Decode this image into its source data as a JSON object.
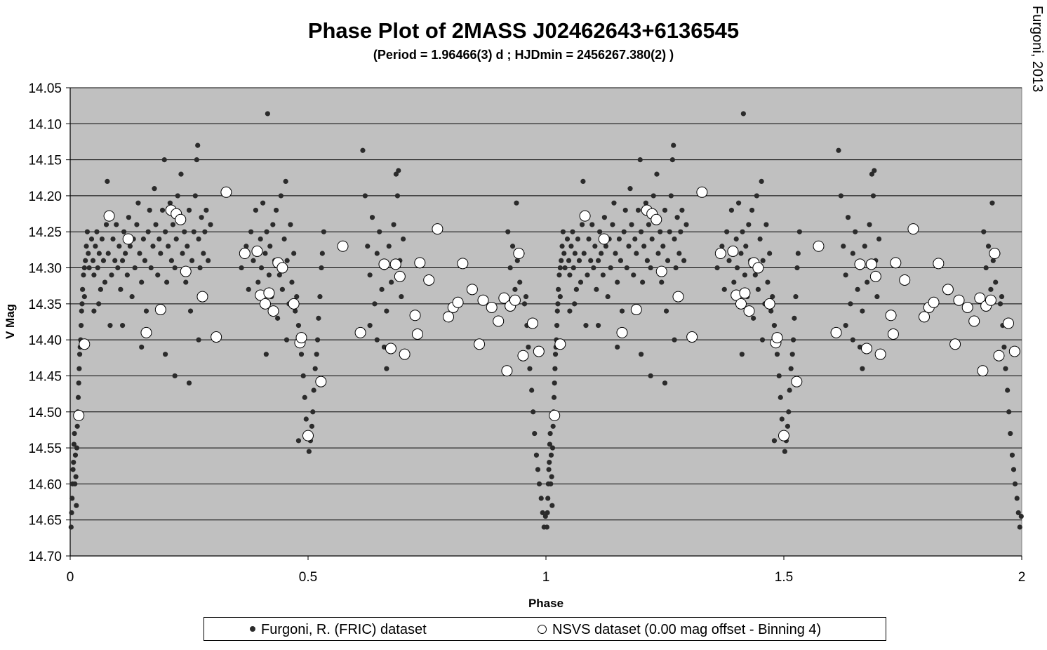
{
  "credit": "Furgoni, 2013",
  "colors": {
    "plot_background": "#c0c0c0",
    "fric_marker": "#2b2b2b",
    "nsvs_marker": "#ffffff"
  },
  "chart_data": {
    "type": "scatter",
    "title": "Phase Plot of 2MASS J02462643+6136545",
    "subtitle": "(Period = 1.96466(3) d ; HJDmin = 2456267.380(2) )",
    "xlabel": "Phase",
    "ylabel": "V Mag",
    "xlim": [
      0,
      2
    ],
    "ylim": [
      14.05,
      14.7
    ],
    "y_inverted": true,
    "x_ticks": [
      "0",
      "0.5",
      "1",
      "1.5",
      "2"
    ],
    "y_ticks": [
      "14.05",
      "14.10",
      "14.15",
      "14.20",
      "14.25",
      "14.30",
      "14.35",
      "14.40",
      "14.45",
      "14.50",
      "14.55",
      "14.60",
      "14.65",
      "14.70"
    ],
    "grid": "horizontal",
    "legend_position": "bottom",
    "phase_plot_repeat": true,
    "series": [
      {
        "name": "Furgoni, R. (FRIC) dataset",
        "marker": "filled-circle",
        "color": "#2b2b2b",
        "points": [
          [
            0.002,
            14.66
          ],
          [
            0.003,
            14.64
          ],
          [
            0.004,
            14.62
          ],
          [
            0.005,
            14.6
          ],
          [
            0.006,
            14.58
          ],
          [
            0.007,
            14.57
          ],
          [
            0.008,
            14.545
          ],
          [
            0.009,
            14.53
          ],
          [
            0.01,
            14.6
          ],
          [
            0.011,
            14.56
          ],
          [
            0.012,
            14.59
          ],
          [
            0.013,
            14.63
          ],
          [
            0.014,
            14.55
          ],
          [
            0.015,
            14.52
          ],
          [
            0.016,
            14.5
          ],
          [
            0.017,
            14.48
          ],
          [
            0.018,
            14.46
          ],
          [
            0.019,
            14.44
          ],
          [
            0.02,
            14.42
          ],
          [
            0.021,
            14.41
          ],
          [
            0.022,
            14.4
          ],
          [
            0.023,
            14.38
          ],
          [
            0.024,
            14.36
          ],
          [
            0.025,
            14.35
          ],
          [
            0.026,
            14.33
          ],
          [
            0.028,
            14.31
          ],
          [
            0.03,
            14.3
          ],
          [
            0.032,
            14.29
          ],
          [
            0.034,
            14.27
          ],
          [
            0.036,
            14.25
          ],
          [
            0.038,
            14.28
          ],
          [
            0.04,
            14.3
          ],
          [
            0.045,
            14.26
          ],
          [
            0.048,
            14.29
          ],
          [
            0.05,
            14.31
          ],
          [
            0.053,
            14.27
          ],
          [
            0.056,
            14.25
          ],
          [
            0.058,
            14.3
          ],
          [
            0.061,
            14.28
          ],
          [
            0.064,
            14.33
          ],
          [
            0.067,
            14.26
          ],
          [
            0.07,
            14.29
          ],
          [
            0.073,
            14.32
          ],
          [
            0.076,
            14.24
          ],
          [
            0.078,
            14.18
          ],
          [
            0.08,
            14.28
          ],
          [
            0.084,
            14.38
          ],
          [
            0.087,
            14.31
          ],
          [
            0.09,
            14.26
          ],
          [
            0.094,
            14.29
          ],
          [
            0.097,
            14.24
          ],
          [
            0.1,
            14.3
          ],
          [
            0.103,
            14.27
          ],
          [
            0.106,
            14.33
          ],
          [
            0.11,
            14.29
          ],
          [
            0.113,
            14.25
          ],
          [
            0.116,
            14.28
          ],
          [
            0.12,
            14.31
          ],
          [
            0.123,
            14.23
          ],
          [
            0.126,
            14.27
          ],
          [
            0.13,
            14.34
          ],
          [
            0.133,
            14.26
          ],
          [
            0.136,
            14.3
          ],
          [
            0.14,
            14.24
          ],
          [
            0.143,
            14.21
          ],
          [
            0.146,
            14.28
          ],
          [
            0.15,
            14.32
          ],
          [
            0.154,
            14.26
          ],
          [
            0.157,
            14.29
          ],
          [
            0.16,
            14.36
          ],
          [
            0.164,
            14.25
          ],
          [
            0.167,
            14.22
          ],
          [
            0.17,
            14.3
          ],
          [
            0.174,
            14.27
          ],
          [
            0.177,
            14.19
          ],
          [
            0.18,
            14.24
          ],
          [
            0.184,
            14.31
          ],
          [
            0.187,
            14.26
          ],
          [
            0.19,
            14.28
          ],
          [
            0.194,
            14.22
          ],
          [
            0.198,
            14.15
          ],
          [
            0.2,
            14.25
          ],
          [
            0.203,
            14.32
          ],
          [
            0.206,
            14.27
          ],
          [
            0.21,
            14.21
          ],
          [
            0.213,
            14.29
          ],
          [
            0.216,
            14.24
          ],
          [
            0.22,
            14.3
          ],
          [
            0.223,
            14.26
          ],
          [
            0.226,
            14.2
          ],
          [
            0.23,
            14.23
          ],
          [
            0.233,
            14.17
          ],
          [
            0.236,
            14.28
          ],
          [
            0.24,
            14.25
          ],
          [
            0.243,
            14.32
          ],
          [
            0.246,
            14.27
          ],
          [
            0.25,
            14.22
          ],
          [
            0.253,
            14.36
          ],
          [
            0.256,
            14.29
          ],
          [
            0.26,
            14.25
          ],
          [
            0.263,
            14.2
          ],
          [
            0.266,
            14.15
          ],
          [
            0.268,
            14.13
          ],
          [
            0.27,
            14.26
          ],
          [
            0.273,
            14.3
          ],
          [
            0.276,
            14.23
          ],
          [
            0.28,
            14.28
          ],
          [
            0.283,
            14.25
          ],
          [
            0.286,
            14.22
          ],
          [
            0.29,
            14.29
          ],
          [
            0.295,
            14.24
          ],
          [
            0.03,
            14.34
          ],
          [
            0.05,
            14.36
          ],
          [
            0.11,
            14.38
          ],
          [
            0.15,
            14.41
          ],
          [
            0.2,
            14.42
          ],
          [
            0.22,
            14.45
          ],
          [
            0.25,
            14.46
          ],
          [
            0.27,
            14.4
          ],
          [
            0.06,
            14.35
          ],
          [
            0.36,
            14.3
          ],
          [
            0.37,
            14.27
          ],
          [
            0.375,
            14.33
          ],
          [
            0.38,
            14.25
          ],
          [
            0.385,
            14.29
          ],
          [
            0.39,
            14.22
          ],
          [
            0.395,
            14.32
          ],
          [
            0.4,
            14.26
          ],
          [
            0.402,
            14.3
          ],
          [
            0.405,
            14.21
          ],
          [
            0.408,
            14.35
          ],
          [
            0.41,
            14.28
          ],
          [
            0.413,
            14.25
          ],
          [
            0.415,
            14.086
          ],
          [
            0.418,
            14.31
          ],
          [
            0.42,
            14.27
          ],
          [
            0.423,
            14.34
          ],
          [
            0.426,
            14.24
          ],
          [
            0.43,
            14.29
          ],
          [
            0.433,
            14.22
          ],
          [
            0.436,
            14.37
          ],
          [
            0.44,
            14.31
          ],
          [
            0.443,
            14.2
          ],
          [
            0.446,
            14.33
          ],
          [
            0.45,
            14.26
          ],
          [
            0.453,
            14.18
          ],
          [
            0.456,
            14.29
          ],
          [
            0.46,
            14.35
          ],
          [
            0.463,
            14.24
          ],
          [
            0.466,
            14.32
          ],
          [
            0.47,
            14.28
          ],
          [
            0.473,
            14.36
          ],
          [
            0.476,
            14.34
          ],
          [
            0.48,
            14.38
          ],
          [
            0.483,
            14.4
          ],
          [
            0.486,
            14.42
          ],
          [
            0.49,
            14.45
          ],
          [
            0.493,
            14.48
          ],
          [
            0.496,
            14.51
          ],
          [
            0.5,
            14.53
          ],
          [
            0.502,
            14.555
          ],
          [
            0.505,
            14.54
          ],
          [
            0.508,
            14.52
          ],
          [
            0.51,
            14.5
          ],
          [
            0.512,
            14.47
          ],
          [
            0.515,
            14.44
          ],
          [
            0.518,
            14.42
          ],
          [
            0.52,
            14.4
          ],
          [
            0.522,
            14.37
          ],
          [
            0.525,
            14.34
          ],
          [
            0.528,
            14.3
          ],
          [
            0.53,
            14.28
          ],
          [
            0.533,
            14.25
          ],
          [
            0.412,
            14.42
          ],
          [
            0.48,
            14.54
          ],
          [
            0.455,
            14.4
          ],
          [
            0.615,
            14.137
          ],
          [
            0.62,
            14.2
          ],
          [
            0.625,
            14.27
          ],
          [
            0.63,
            14.31
          ],
          [
            0.635,
            14.23
          ],
          [
            0.64,
            14.35
          ],
          [
            0.645,
            14.28
          ],
          [
            0.65,
            14.25
          ],
          [
            0.655,
            14.33
          ],
          [
            0.66,
            14.3
          ],
          [
            0.665,
            14.36
          ],
          [
            0.67,
            14.27
          ],
          [
            0.675,
            14.32
          ],
          [
            0.68,
            14.24
          ],
          [
            0.685,
            14.17
          ],
          [
            0.688,
            14.2
          ],
          [
            0.69,
            14.165
          ],
          [
            0.693,
            14.29
          ],
          [
            0.696,
            14.34
          ],
          [
            0.7,
            14.26
          ],
          [
            0.66,
            14.41
          ],
          [
            0.665,
            14.44
          ],
          [
            0.63,
            14.38
          ],
          [
            0.645,
            14.4
          ],
          [
            0.92,
            14.25
          ],
          [
            0.925,
            14.3
          ],
          [
            0.93,
            14.27
          ],
          [
            0.935,
            14.33
          ],
          [
            0.938,
            14.21
          ],
          [
            0.94,
            14.29
          ],
          [
            0.945,
            14.32
          ],
          [
            0.95,
            14.28
          ],
          [
            0.955,
            14.35
          ],
          [
            0.958,
            14.34
          ],
          [
            0.96,
            14.38
          ],
          [
            0.963,
            14.41
          ],
          [
            0.966,
            14.44
          ],
          [
            0.97,
            14.47
          ],
          [
            0.973,
            14.5
          ],
          [
            0.976,
            14.53
          ],
          [
            0.98,
            14.56
          ],
          [
            0.983,
            14.58
          ],
          [
            0.986,
            14.6
          ],
          [
            0.99,
            14.62
          ],
          [
            0.993,
            14.64
          ],
          [
            0.996,
            14.66
          ],
          [
            0.999,
            14.645
          ]
        ]
      },
      {
        "name": "NSVS dataset (0.00 mag offset - Binning 4)",
        "marker": "open-circle",
        "color": "#ffffff",
        "points": [
          [
            0.018,
            14.505
          ],
          [
            0.03,
            14.406
          ],
          [
            0.082,
            14.228
          ],
          [
            0.122,
            14.26
          ],
          [
            0.16,
            14.39
          ],
          [
            0.19,
            14.358
          ],
          [
            0.212,
            14.22
          ],
          [
            0.223,
            14.225
          ],
          [
            0.232,
            14.233
          ],
          [
            0.243,
            14.305
          ],
          [
            0.278,
            14.34
          ],
          [
            0.307,
            14.396
          ],
          [
            0.328,
            14.195
          ],
          [
            0.367,
            14.28
          ],
          [
            0.393,
            14.277
          ],
          [
            0.4,
            14.338
          ],
          [
            0.41,
            14.35
          ],
          [
            0.418,
            14.335
          ],
          [
            0.427,
            14.36
          ],
          [
            0.437,
            14.293
          ],
          [
            0.446,
            14.3
          ],
          [
            0.47,
            14.35
          ],
          [
            0.483,
            14.404
          ],
          [
            0.486,
            14.397
          ],
          [
            0.5,
            14.533
          ],
          [
            0.527,
            14.458
          ],
          [
            0.573,
            14.27
          ],
          [
            0.61,
            14.39
          ],
          [
            0.66,
            14.295
          ],
          [
            0.674,
            14.412
          ],
          [
            0.684,
            14.295
          ],
          [
            0.693,
            14.312
          ],
          [
            0.703,
            14.42
          ],
          [
            0.725,
            14.366
          ],
          [
            0.73,
            14.392
          ],
          [
            0.735,
            14.293
          ],
          [
            0.754,
            14.317
          ],
          [
            0.772,
            14.246
          ],
          [
            0.795,
            14.368
          ],
          [
            0.805,
            14.355
          ],
          [
            0.815,
            14.348
          ],
          [
            0.825,
            14.294
          ],
          [
            0.845,
            14.33
          ],
          [
            0.86,
            14.406
          ],
          [
            0.868,
            14.345
          ],
          [
            0.886,
            14.355
          ],
          [
            0.9,
            14.374
          ],
          [
            0.912,
            14.342
          ],
          [
            0.918,
            14.443
          ],
          [
            0.925,
            14.353
          ],
          [
            0.935,
            14.345
          ],
          [
            0.943,
            14.28
          ],
          [
            0.952,
            14.422
          ],
          [
            0.972,
            14.377
          ],
          [
            0.985,
            14.416
          ]
        ]
      }
    ]
  },
  "legend": {
    "fric_label": "Furgoni, R. (FRIC) dataset",
    "nsvs_label": "NSVS dataset (0.00 mag offset - Binning 4)"
  }
}
